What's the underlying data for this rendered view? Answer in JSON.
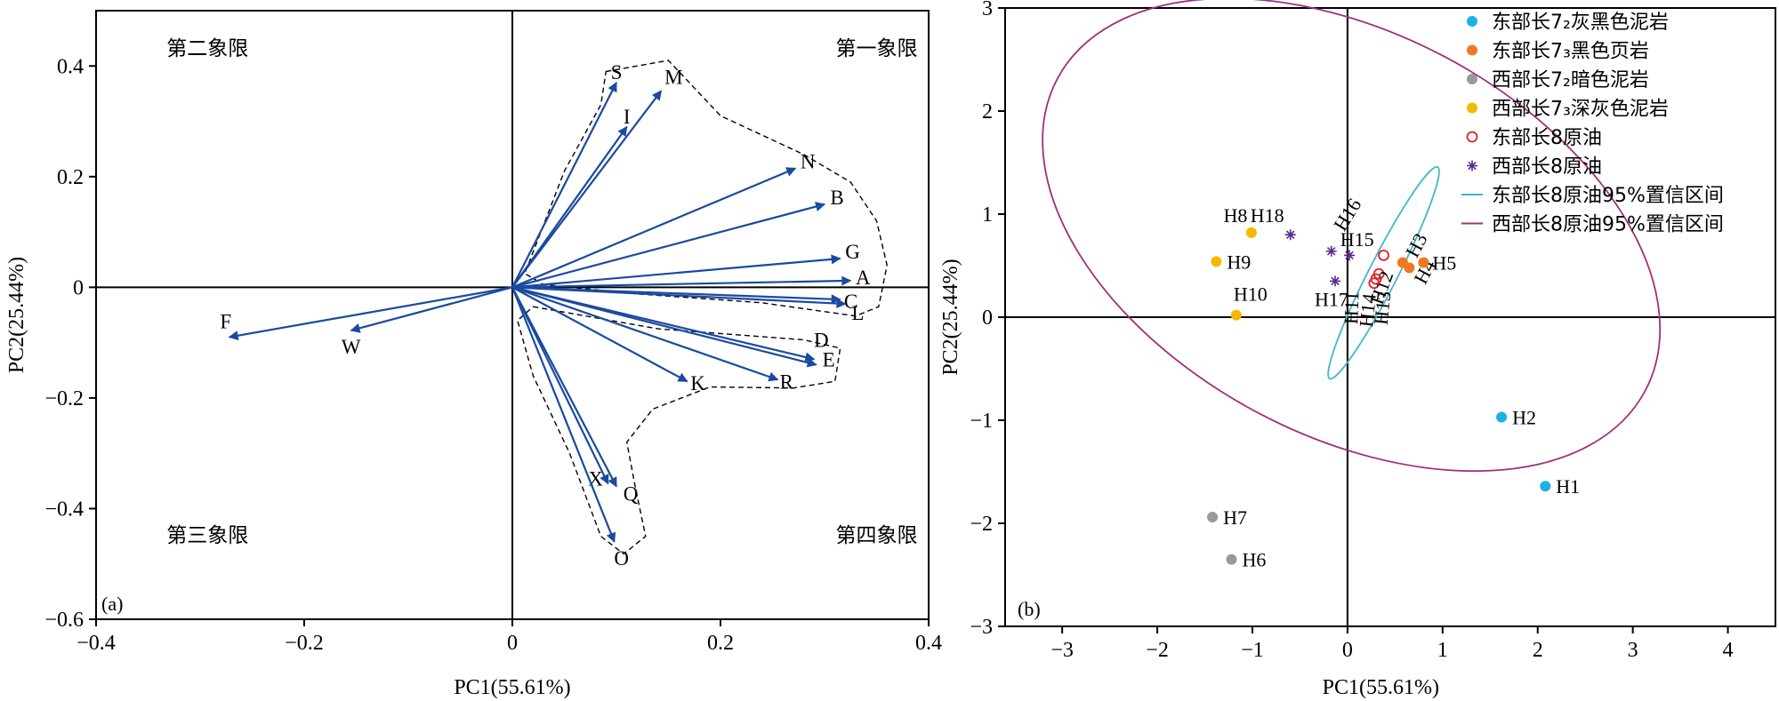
{
  "chart_data": [
    {
      "type": "biplot-vectors",
      "panel_label": "(a)",
      "xlabel": "PC1(55.61%)",
      "ylabel": "PC2(25.44%)",
      "xlim": [
        -0.4,
        0.4
      ],
      "ylim": [
        -0.6,
        0.5
      ],
      "x_ticks": [
        -0.4,
        -0.2,
        0,
        0.2,
        0.4
      ],
      "y_ticks": [
        -0.6,
        -0.4,
        -0.2,
        0,
        0.2,
        0.4
      ],
      "x_tick_labels": [
        "−0.4",
        "−0.2",
        "0",
        "0.2",
        "0.4"
      ],
      "y_tick_labels": [
        "−0.6",
        "−0.4",
        "−0.2",
        "0",
        "0.2",
        "0.4"
      ],
      "quadrant_labels": [
        "第一象限",
        "第二象限",
        "第三象限",
        "第四象限"
      ],
      "vectors": [
        {
          "label": "S",
          "x": 0.1,
          "y": 0.37
        },
        {
          "label": "I",
          "x": 0.11,
          "y": 0.29
        },
        {
          "label": "M",
          "x": 0.143,
          "y": 0.355
        },
        {
          "label": "N",
          "x": 0.272,
          "y": 0.215
        },
        {
          "label": "B",
          "x": 0.3,
          "y": 0.15
        },
        {
          "label": "G",
          "x": 0.315,
          "y": 0.052
        },
        {
          "label": "A",
          "x": 0.325,
          "y": 0.012
        },
        {
          "label": "C",
          "x": 0.315,
          "y": -0.022
        },
        {
          "label": "L",
          "x": 0.32,
          "y": -0.03
        },
        {
          "label": "D",
          "x": 0.29,
          "y": -0.13
        },
        {
          "label": "E",
          "x": 0.292,
          "y": -0.14
        },
        {
          "label": "R",
          "x": 0.255,
          "y": -0.167
        },
        {
          "label": "K",
          "x": 0.168,
          "y": -0.17
        },
        {
          "label": "X",
          "x": 0.092,
          "y": -0.355
        },
        {
          "label": "Q",
          "x": 0.1,
          "y": -0.36
        },
        {
          "label": "O",
          "x": 0.098,
          "y": -0.46
        },
        {
          "label": "F",
          "x": -0.272,
          "y": -0.09
        },
        {
          "label": "W",
          "x": -0.155,
          "y": -0.078
        }
      ]
    },
    {
      "type": "scatter",
      "panel_label": "(b)",
      "xlabel": "PC1(55.61%)",
      "ylabel": "PC2(25.44%)",
      "xlim": [
        -3.6,
        4.5
      ],
      "ylim": [
        -3,
        3
      ],
      "x_ticks": [
        -3,
        -2,
        -1,
        0,
        1,
        2,
        3,
        4
      ],
      "y_ticks": [
        -3,
        -2,
        -1,
        0,
        1,
        2,
        3
      ],
      "x_tick_labels": [
        "−3",
        "−2",
        "−1",
        "0",
        "1",
        "2",
        "3",
        "4"
      ],
      "y_tick_labels": [
        "−3",
        "−2",
        "−1",
        "0",
        "1",
        "2",
        "3"
      ],
      "legend_position": "top-right",
      "series": [
        {
          "name": "东部长7₂灰黑色泥岩",
          "marker": "dot",
          "color": "#1ab0e8",
          "points": [
            {
              "label": "H1",
              "x": 2.08,
              "y": -1.64
            },
            {
              "label": "H2",
              "x": 1.62,
              "y": -0.97
            }
          ]
        },
        {
          "name": "东部长7₃黑色页岩",
          "marker": "dot",
          "color": "#f07820",
          "points": [
            {
              "label": "H3",
              "x": 0.58,
              "y": 0.53
            },
            {
              "label": "H4",
              "x": 0.65,
              "y": 0.48
            },
            {
              "label": "H5",
              "x": 0.8,
              "y": 0.53
            }
          ]
        },
        {
          "name": "西部长7₂暗色泥岩",
          "marker": "dot",
          "color": "#999999",
          "points": [
            {
              "label": "H6",
              "x": -1.22,
              "y": -2.35
            },
            {
              "label": "H7",
              "x": -1.42,
              "y": -1.94
            }
          ]
        },
        {
          "name": "西部长7₃深灰色泥岩",
          "marker": "dot",
          "color": "#f5b800",
          "points": [
            {
              "label": "H8",
              "x": -1.01,
              "y": 0.82
            },
            {
              "label": "H9",
              "x": -1.38,
              "y": 0.54
            },
            {
              "label": "H10",
              "x": -1.17,
              "y": 0.02
            }
          ]
        },
        {
          "name": "东部长8原油",
          "marker": "open-circle",
          "color": "#e02020",
          "points": [
            {
              "label": "H11",
              "x": 0.28,
              "y": 0.33
            },
            {
              "label": "H12",
              "x": 0.33,
              "y": 0.42
            },
            {
              "label": "H13",
              "x": 0.38,
              "y": 0.6
            },
            {
              "label": "H14",
              "x": 0.3,
              "y": 0.37
            }
          ]
        },
        {
          "name": "西部长8原油",
          "marker": "star",
          "color": "#5a2a8a",
          "points": [
            {
              "label": "H15",
              "x": -0.17,
              "y": 0.64
            },
            {
              "label": "H16",
              "x": 0.02,
              "y": 0.6
            },
            {
              "label": "H17",
              "x": -0.13,
              "y": 0.35
            },
            {
              "label": "H18",
              "x": -0.6,
              "y": 0.8
            }
          ]
        },
        {
          "name": "东部长8原油95%置信区间",
          "marker": "ellipse",
          "color": "#40b8c8",
          "ellipse": {
            "cx": 0.38,
            "cy": 0.43,
            "semi_major": 1.25,
            "semi_minor": 0.14,
            "angle_deg": 63
          }
        },
        {
          "name": "西部长8原油95%置信区间",
          "marker": "ellipse",
          "color": "#a0307a",
          "ellipse": {
            "cx": 0.04,
            "cy": 0.8,
            "semi_major": 3.5,
            "semi_minor": 1.95,
            "angle_deg": -28
          }
        }
      ]
    }
  ]
}
